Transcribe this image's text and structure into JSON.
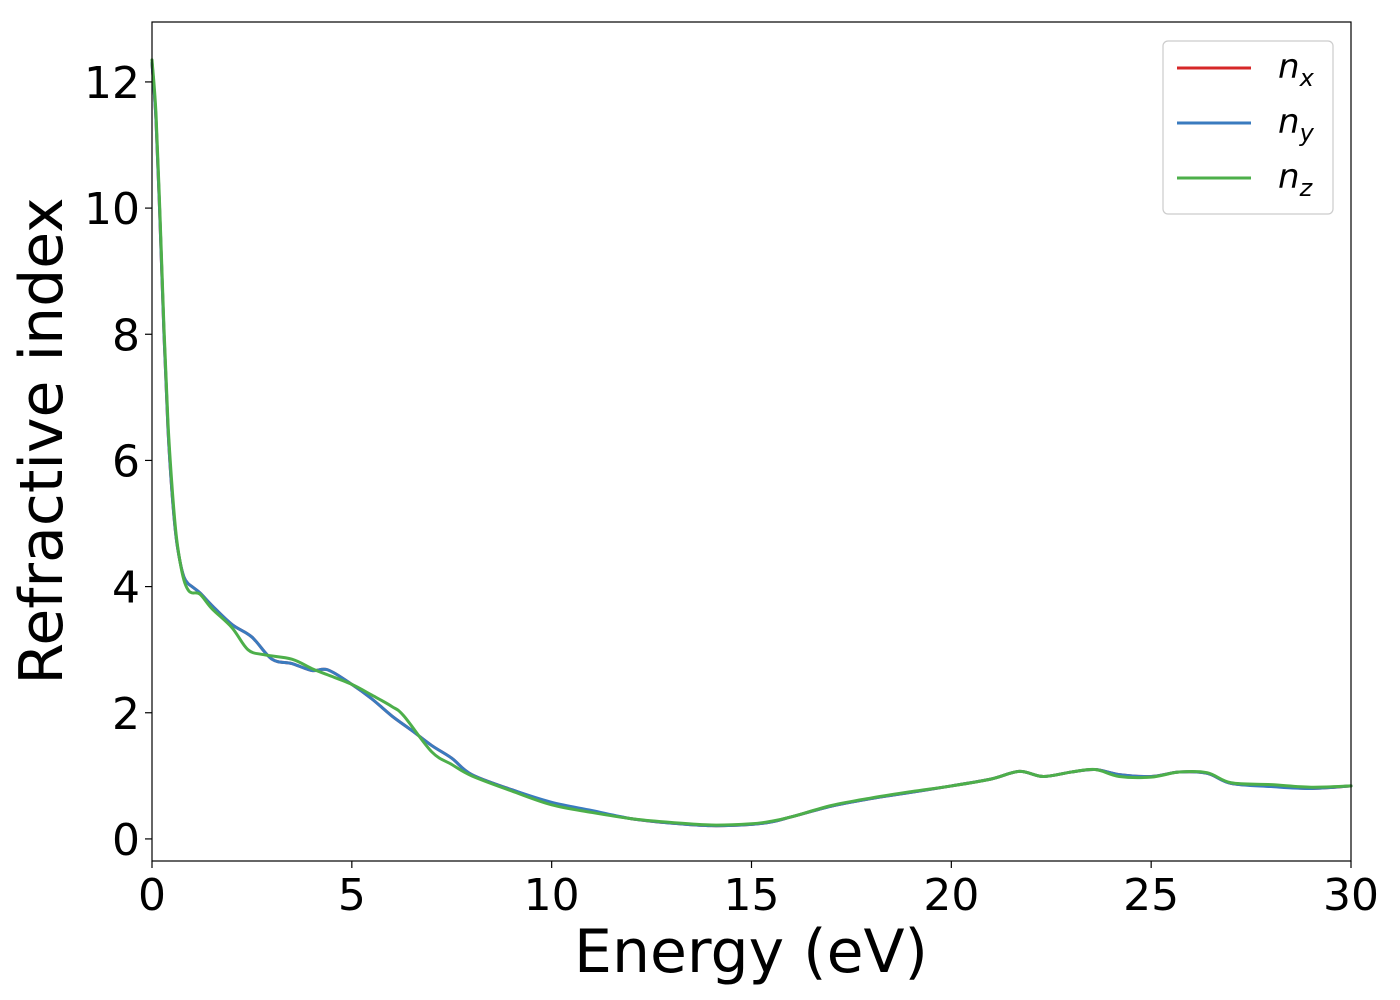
{
  "chart_data": {
    "type": "line",
    "xlabel": "Energy (eV)",
    "ylabel": "Refractive index",
    "xlim": [
      0,
      30
    ],
    "ylim": [
      -0.35,
      12.95
    ],
    "xticks": [
      0,
      5,
      10,
      15,
      20,
      25,
      30
    ],
    "yticks": [
      0,
      2,
      4,
      6,
      8,
      10,
      12
    ],
    "xtick_labels": [
      "0",
      "5",
      "10",
      "15",
      "20",
      "25",
      "30"
    ],
    "ytick_labels": [
      "0",
      "2",
      "4",
      "6",
      "8",
      "10",
      "12"
    ],
    "grid": false,
    "legend_position": "top-right",
    "series": [
      {
        "name": "n",
        "subscript": "x",
        "color": "#d62728",
        "x": [
          0,
          0.1,
          0.2,
          0.3,
          0.4,
          0.5,
          0.6,
          0.7,
          0.8,
          0.9,
          1.0,
          1.2,
          1.5,
          2.0,
          2.5,
          3.0,
          3.5,
          4.0,
          4.4,
          5.0,
          5.5,
          6.0,
          6.5,
          7.0,
          7.5,
          8.0,
          9.0,
          10.0,
          11.0,
          12.0,
          13.0,
          14.0,
          15.0,
          15.5,
          16.0,
          17.0,
          18.0,
          19.0,
          20.0,
          21.0,
          21.7,
          22.3,
          23.0,
          23.6,
          24.2,
          25.0,
          25.7,
          26.4,
          27.0,
          28.0,
          29.0,
          30.0
        ],
        "y": [
          12.3,
          11.4,
          9.8,
          8.0,
          6.5,
          5.5,
          4.8,
          4.4,
          4.15,
          4.05,
          4.0,
          3.9,
          3.7,
          3.4,
          3.2,
          2.85,
          2.78,
          2.67,
          2.68,
          2.45,
          2.22,
          1.95,
          1.72,
          1.48,
          1.28,
          1.02,
          0.78,
          0.57,
          0.44,
          0.32,
          0.25,
          0.21,
          0.23,
          0.27,
          0.35,
          0.52,
          0.64,
          0.74,
          0.84,
          0.95,
          1.07,
          0.99,
          1.06,
          1.1,
          1.02,
          0.99,
          1.06,
          1.04,
          0.88,
          0.84,
          0.8,
          0.84
        ]
      },
      {
        "name": "n",
        "subscript": "y",
        "color": "#3a7bbf",
        "x": [
          0,
          0.1,
          0.2,
          0.3,
          0.4,
          0.5,
          0.6,
          0.7,
          0.8,
          0.9,
          1.0,
          1.2,
          1.5,
          2.0,
          2.5,
          3.0,
          3.5,
          4.0,
          4.4,
          5.0,
          5.5,
          6.0,
          6.5,
          7.0,
          7.5,
          8.0,
          9.0,
          10.0,
          11.0,
          12.0,
          13.0,
          14.0,
          15.0,
          15.5,
          16.0,
          17.0,
          18.0,
          19.0,
          20.0,
          21.0,
          21.7,
          22.3,
          23.0,
          23.6,
          24.2,
          25.0,
          25.7,
          26.4,
          27.0,
          28.0,
          29.0,
          30.0
        ],
        "y": [
          12.3,
          11.4,
          9.8,
          8.0,
          6.5,
          5.5,
          4.8,
          4.4,
          4.15,
          4.05,
          4.0,
          3.9,
          3.7,
          3.4,
          3.2,
          2.85,
          2.78,
          2.67,
          2.68,
          2.45,
          2.22,
          1.95,
          1.72,
          1.48,
          1.28,
          1.02,
          0.78,
          0.58,
          0.45,
          0.32,
          0.25,
          0.21,
          0.23,
          0.27,
          0.35,
          0.52,
          0.64,
          0.74,
          0.84,
          0.95,
          1.07,
          0.99,
          1.06,
          1.1,
          1.02,
          0.99,
          1.06,
          1.04,
          0.88,
          0.83,
          0.8,
          0.84
        ]
      },
      {
        "name": "n",
        "subscript": "z",
        "color": "#4daf4a",
        "x": [
          0,
          0.1,
          0.2,
          0.3,
          0.4,
          0.5,
          0.6,
          0.7,
          0.8,
          0.9,
          1.0,
          1.2,
          1.5,
          2.0,
          2.4,
          2.8,
          3.5,
          4.0,
          4.4,
          5.0,
          5.5,
          6.0,
          6.3,
          7.0,
          7.5,
          8.0,
          9.0,
          10.0,
          11.0,
          12.0,
          13.0,
          14.0,
          15.0,
          15.5,
          16.0,
          17.0,
          18.0,
          19.0,
          20.0,
          21.0,
          21.7,
          22.3,
          23.0,
          23.6,
          24.2,
          25.0,
          25.7,
          26.4,
          27.0,
          28.0,
          29.0,
          30.0
        ],
        "y": [
          12.35,
          11.5,
          9.9,
          8.1,
          6.6,
          5.6,
          4.85,
          4.4,
          4.1,
          3.95,
          3.9,
          3.88,
          3.65,
          3.35,
          3.0,
          2.92,
          2.85,
          2.7,
          2.6,
          2.45,
          2.28,
          2.1,
          1.95,
          1.38,
          1.18,
          1.0,
          0.76,
          0.54,
          0.42,
          0.32,
          0.26,
          0.22,
          0.24,
          0.28,
          0.35,
          0.53,
          0.65,
          0.75,
          0.84,
          0.95,
          1.07,
          0.99,
          1.06,
          1.1,
          0.99,
          0.98,
          1.06,
          1.05,
          0.89,
          0.86,
          0.82,
          0.84
        ]
      }
    ]
  }
}
